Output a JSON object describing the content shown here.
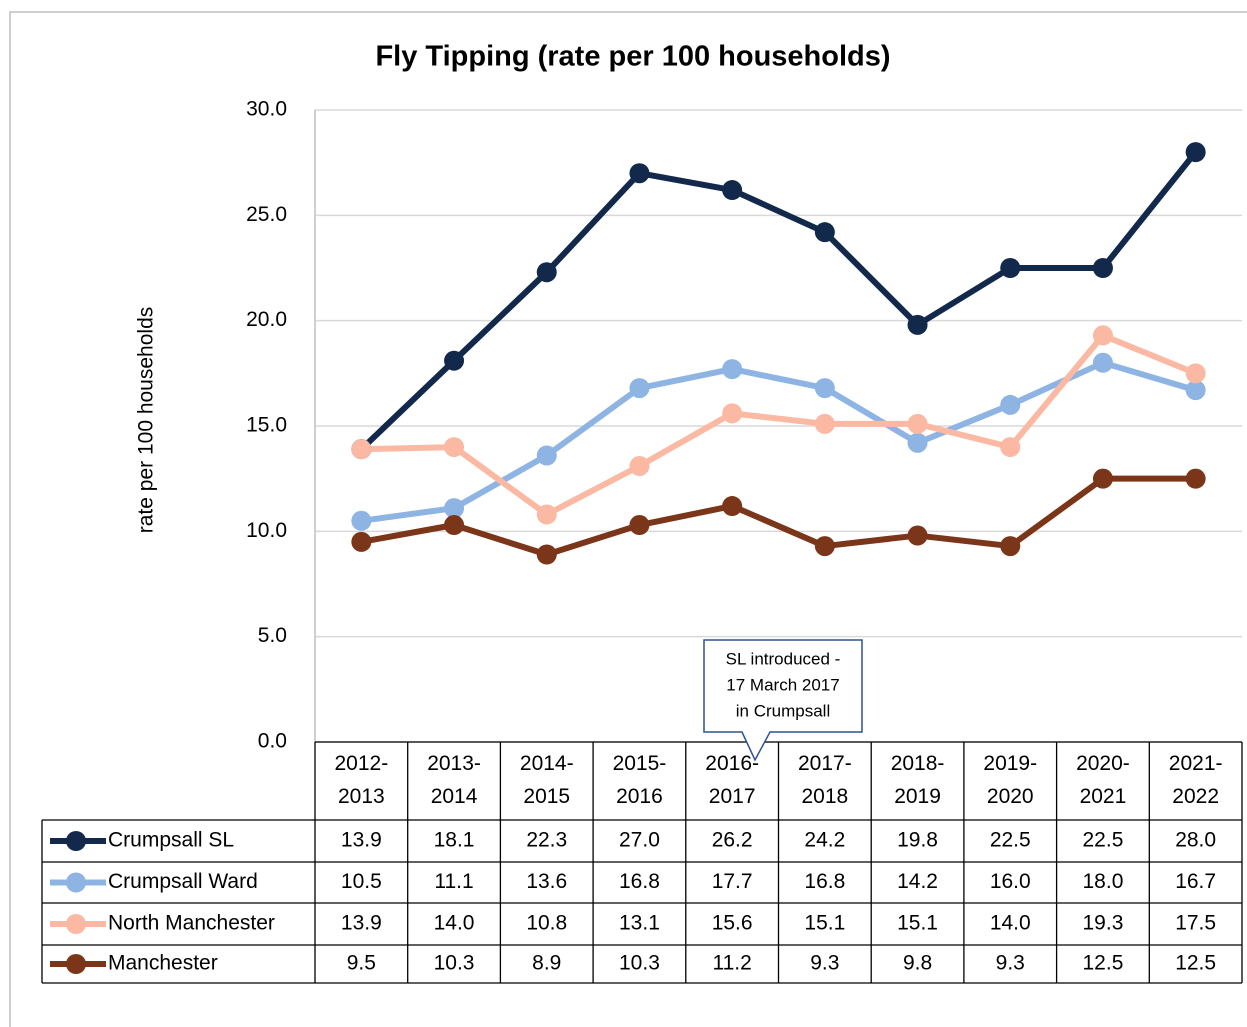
{
  "chart_data": {
    "type": "line",
    "title": "Fly Tipping (rate per 100 households)",
    "y_label": "rate per 100 households",
    "categories": [
      "2012-2013",
      "2013-2014",
      "2014-2015",
      "2015-2016",
      "2016-2017",
      "2017-2018",
      "2018-2019",
      "2019-2020",
      "2020-2021",
      "2021-2022"
    ],
    "ylim": [
      0,
      30
    ],
    "yticks": [
      {
        "value": 0,
        "label": "0.0"
      },
      {
        "value": 5,
        "label": "5.0"
      },
      {
        "value": 10,
        "label": "10.0"
      },
      {
        "value": 15,
        "label": "15.0"
      },
      {
        "value": 20,
        "label": "20.0"
      },
      {
        "value": 25,
        "label": "25.0"
      },
      {
        "value": 30,
        "label": "30.0"
      }
    ],
    "grid": true,
    "annotation": [
      "SL introduced -",
      "17 March 2017",
      "in Crumpsall"
    ],
    "series": [
      {
        "name": "Crumpsall SL",
        "color": "#13294b",
        "values": [
          13.9,
          18.1,
          22.3,
          27.0,
          26.2,
          24.2,
          19.8,
          22.5,
          22.5,
          28.0
        ],
        "value_labels": [
          "13.9",
          "18.1",
          "22.3",
          "27.0",
          "26.2",
          "24.2",
          "19.8",
          "22.5",
          "22.5",
          "28.0"
        ]
      },
      {
        "name": "Crumpsall Ward",
        "color": "#8eb4e3",
        "values": [
          10.5,
          11.1,
          13.6,
          16.8,
          17.7,
          16.8,
          14.2,
          16.0,
          18.0,
          16.7
        ],
        "value_labels": [
          "10.5",
          "11.1",
          "13.6",
          "16.8",
          "17.7",
          "16.8",
          "14.2",
          "16.0",
          "18.0",
          "16.7"
        ]
      },
      {
        "name": "North Manchester",
        "color": "#fbb9a4",
        "values": [
          13.9,
          14.0,
          10.8,
          13.1,
          15.6,
          15.1,
          15.1,
          14.0,
          19.3,
          17.5
        ],
        "value_labels": [
          "13.9",
          "14.0",
          "10.8",
          "13.1",
          "15.6",
          "15.1",
          "15.1",
          "14.0",
          "19.3",
          "17.5"
        ]
      },
      {
        "name": "Manchester",
        "color": "#7b3519",
        "values": [
          9.5,
          10.3,
          8.9,
          10.3,
          11.2,
          9.3,
          9.8,
          9.3,
          12.5,
          12.5
        ],
        "value_labels": [
          "9.5",
          "10.3",
          "8.9",
          "10.3",
          "11.2",
          "9.3",
          "9.8",
          "9.3",
          "12.5",
          "12.5"
        ]
      }
    ]
  }
}
